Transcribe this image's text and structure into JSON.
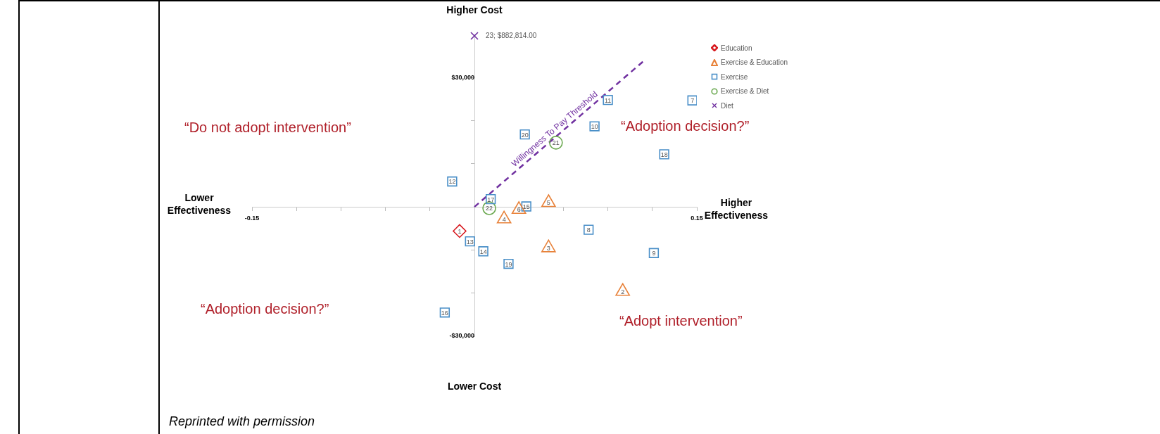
{
  "chart_data": {
    "type": "scatter",
    "xlim": [
      -0.15,
      0.15
    ],
    "ylim": [
      -30000,
      40000
    ],
    "xticks": [
      {
        "value": -0.15,
        "label": "-0.15"
      },
      {
        "value": -0.12,
        "label": null
      },
      {
        "value": -0.09,
        "label": null
      },
      {
        "value": -0.06,
        "label": null
      },
      {
        "value": -0.03,
        "label": null
      },
      {
        "value": 0.03,
        "label": null
      },
      {
        "value": 0.06,
        "label": null
      },
      {
        "value": 0.09,
        "label": null
      },
      {
        "value": 0.12,
        "label": null
      },
      {
        "value": 0.15,
        "label": "0.15"
      }
    ],
    "yticks": [
      {
        "value": -30000,
        "label": "-$30,000"
      },
      {
        "value": -20000,
        "label": null
      },
      {
        "value": -10000,
        "label": null
      },
      {
        "value": 10000,
        "label": null
      },
      {
        "value": 20000,
        "label": null
      },
      {
        "value": 30000,
        "label": "$30,000"
      }
    ],
    "grid": false,
    "legend": "top right",
    "series": [
      {
        "name": "Education",
        "color": "#d7191f",
        "marker": "diamond",
        "x": [
          -0.01
        ],
        "values": [
          -5600
        ]
      },
      {
        "name": "Exercise & Education",
        "color": "#e8823a",
        "marker": "triangle",
        "x": [
          0.1,
          0.05,
          0.02,
          0.05,
          0.03
        ],
        "values": [
          -19600,
          -9500,
          -2800,
          1000,
          -600
        ]
      },
      {
        "name": "Exercise",
        "color": "#4a8fc8",
        "marker": "square",
        "x": [
          0.147,
          0.077,
          0.121,
          0.081,
          0.09,
          -0.015,
          -0.003,
          0.006,
          0.035,
          -0.02,
          0.011,
          0.128,
          0.023,
          0.034
        ],
        "values": [
          24700,
          -5300,
          -10700,
          18700,
          24800,
          5900,
          -8000,
          -10300,
          100,
          -24500,
          1800,
          12200,
          -13200,
          16800
        ]
      },
      {
        "name": "Exercise & Diet",
        "color": "#6aa84f",
        "marker": "circle",
        "x": [
          0.055,
          0.01
        ],
        "values": [
          14900,
          -300
        ]
      },
      {
        "name": "Diet",
        "color": "#7030a0",
        "marker": "cross"
      },
      {
        "type": "line",
        "name": "Willingness To Pay Threshold",
        "color": "#7030a0",
        "marker": "none",
        "line_style": "dashed",
        "x": [
          0,
          0.114
        ],
        "values": [
          0,
          33800
        ]
      }
    ],
    "annotations": [
      "Higher Cost",
      "Lower Cost",
      "Lower Effectiveness",
      "Higher Effectiveness",
      "“Do not adopt intervention”",
      "“Adoption decision?”",
      "“Adoption decision?”",
      "“Adopt intervention”",
      "23; $882,814.00",
      "Reprinted with permission",
      {
        "text": "1",
        "x": -0.01,
        "y": -5600
      },
      {
        "text": "2",
        "x": 0.1,
        "y": -19600
      },
      {
        "text": "3",
        "x": 0.05,
        "y": -9500
      },
      {
        "text": "4",
        "x": 0.02,
        "y": -2800
      },
      {
        "text": "5",
        "x": 0.05,
        "y": 1000
      },
      {
        "text": "6",
        "x": 0.03,
        "y": -600
      },
      {
        "text": "7",
        "x": 0.147,
        "y": 24700
      },
      {
        "text": "8",
        "x": 0.077,
        "y": -5300
      },
      {
        "text": "9",
        "x": 0.121,
        "y": -10700
      },
      {
        "text": "10",
        "x": 0.081,
        "y": 18700
      },
      {
        "text": "11",
        "x": 0.09,
        "y": 24800
      },
      {
        "text": "12",
        "x": -0.015,
        "y": 5900
      },
      {
        "text": "13",
        "x": -0.003,
        "y": -8000
      },
      {
        "text": "14",
        "x": 0.006,
        "y": -10300
      },
      {
        "text": "15",
        "x": 0.035,
        "y": 100
      },
      {
        "text": "16",
        "x": -0.02,
        "y": -24500
      },
      {
        "text": "17",
        "x": 0.011,
        "y": 1800
      },
      {
        "text": "18",
        "x": 0.128,
        "y": 12200
      },
      {
        "text": "19",
        "x": 0.023,
        "y": -13200
      },
      {
        "text": "20",
        "x": 0.034,
        "y": 16800
      },
      {
        "text": "21",
        "x": 0.055,
        "y": 14900
      },
      {
        "text": "22",
        "x": 0.01,
        "y": -300
      }
    ]
  }
}
